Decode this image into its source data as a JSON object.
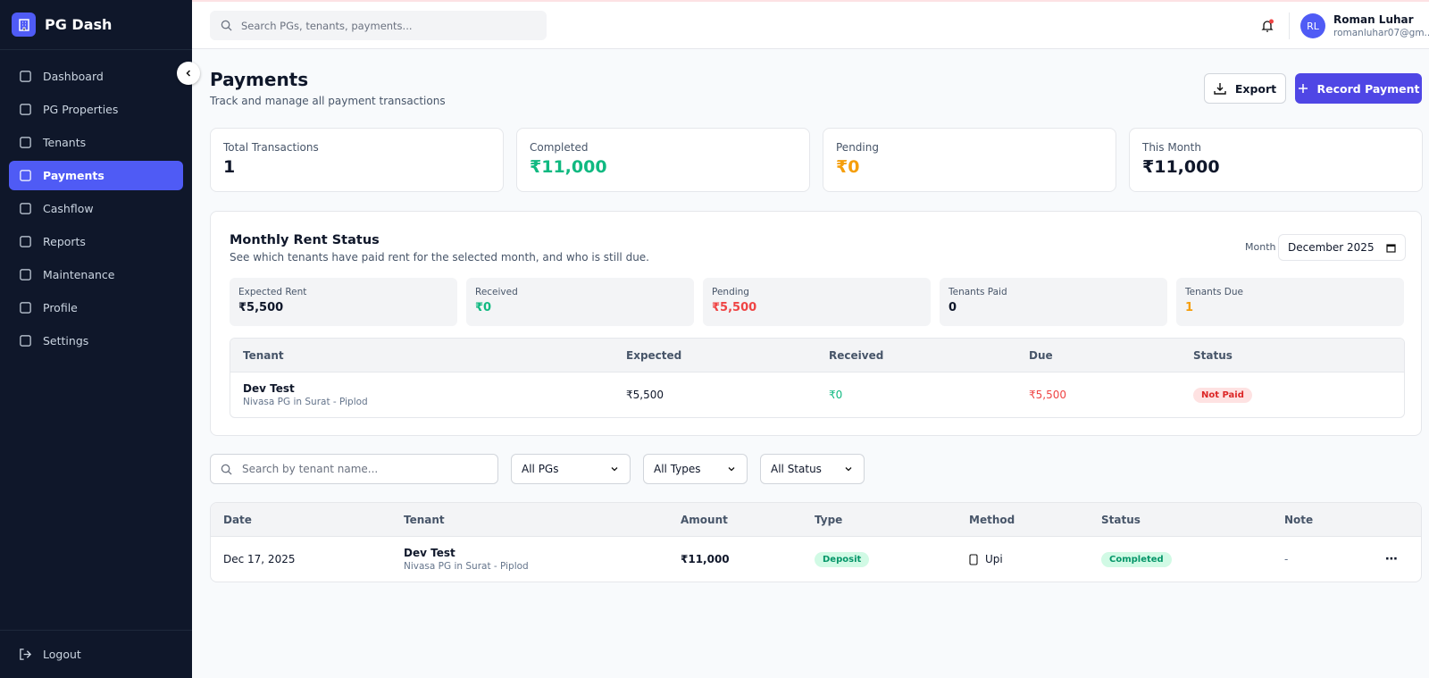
{
  "sidebar": {
    "brand": "PG Dash",
    "nav": [
      "Dashboard",
      "PG Properties",
      "Tenants",
      "Payments",
      "Cashflow",
      "Reports",
      "Maintenance",
      "Profile",
      "Settings"
    ],
    "logout": "Logout"
  },
  "topbar": {
    "search_placeholder": "Search PGs, tenants, payments...",
    "user": {
      "initials": "RL",
      "name": "Roman Luhar",
      "email": "romanluhar07@gm..."
    }
  },
  "header": {
    "title": "Payments",
    "subtitle": "Track and manage all payment transactions",
    "buttons": [
      "Export",
      "Record Payment"
    ]
  },
  "stats": [
    {
      "label": "Total Transactions",
      "value": "1"
    },
    {
      "label": "Completed",
      "value": "₹11,000"
    },
    {
      "label": "Pending",
      "value": "₹0"
    },
    {
      "label": "This Month",
      "value": "₹11,000"
    }
  ],
  "rent_status": {
    "title": "Monthly Rent Status",
    "subtitle": "See which tenants have paid rent for the selected month, and who is still due.",
    "month_label": "Month",
    "month": "December 2025",
    "summary": [
      {
        "label": "Expected Rent",
        "value": "₹5,500"
      },
      {
        "label": "Received",
        "value": "₹0"
      },
      {
        "label": "Pending",
        "value": "₹5,500"
      },
      {
        "label": "Tenants Paid",
        "value": "0"
      },
      {
        "label": "Tenants Due",
        "value": "1"
      }
    ],
    "table": {
      "columns": [
        "Tenant",
        "Expected",
        "Received",
        "Due",
        "Status"
      ],
      "rows": [
        {
          "tenant": "Dev Test",
          "property": "Nivasa PG in Surat - Piplod",
          "expected": "₹5,500",
          "received": "₹0",
          "due": "₹5,500",
          "status": "Not Paid"
        }
      ]
    }
  },
  "filters": {
    "search_placeholder": "Search by tenant name...",
    "selects": [
      "All PGs",
      "All Types",
      "All Status"
    ]
  },
  "payments_table": {
    "columns": [
      "Date",
      "Tenant",
      "Amount",
      "Type",
      "Method",
      "Status",
      "Note"
    ],
    "rows": [
      {
        "date": "Dec 17, 2025",
        "tenant": "Dev Test",
        "property": "Nivasa PG in Surat - Piplod",
        "amount": "₹11,000",
        "type": "Deposit",
        "method": "Upi",
        "status": "Completed",
        "note": "-"
      }
    ]
  }
}
